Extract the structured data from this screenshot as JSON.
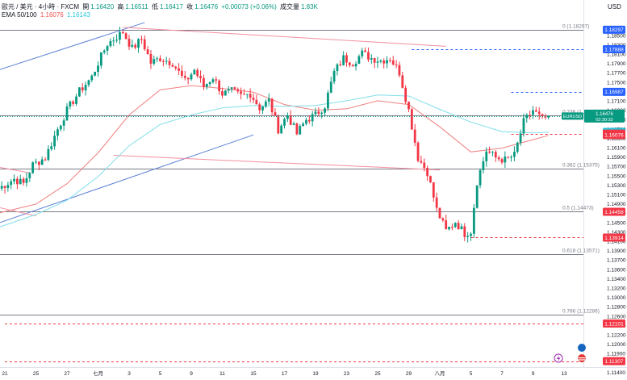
{
  "header": {
    "symbol": "歐元 / 美元 · 4小時 · FXCM",
    "open_label": "開",
    "open": "1.16420",
    "high_label": "高",
    "high": "1.16511",
    "low_label": "低",
    "low": "1.16417",
    "close_label": "收",
    "close": "1.16476",
    "change": "+0.00073 (+0.06%)",
    "volume_label": "成交量",
    "volume": "1.83K",
    "ema_label": "EMA 50/100",
    "ema_fast": "1.16076",
    "ema_slow": "1.16143"
  },
  "currency": "USD",
  "chart_data": {
    "type": "candlestick",
    "symbol": "EURUSD",
    "timeframe": "4H",
    "ylim": [
      1.1125,
      1.185
    ],
    "x_ticks": [
      {
        "i": 0,
        "label": "21"
      },
      {
        "i": 10,
        "label": "25"
      },
      {
        "i": 20,
        "label": "27"
      },
      {
        "i": 30,
        "label": "七月"
      },
      {
        "i": 40,
        "label": "3"
      },
      {
        "i": 50,
        "label": "5"
      },
      {
        "i": 60,
        "label": "9"
      },
      {
        "i": 70,
        "label": "11"
      },
      {
        "i": 80,
        "label": "15"
      },
      {
        "i": 90,
        "label": "17"
      },
      {
        "i": 100,
        "label": "19"
      },
      {
        "i": 110,
        "label": "23"
      },
      {
        "i": 120,
        "label": "25"
      },
      {
        "i": 130,
        "label": "29"
      },
      {
        "i": 140,
        "label": "八月"
      },
      {
        "i": 150,
        "label": "5"
      },
      {
        "i": 160,
        "label": "7"
      },
      {
        "i": 170,
        "label": "9"
      },
      {
        "i": 180,
        "label": "13"
      }
    ],
    "y_ticks": [
      "1.18500",
      "1.18300",
      "1.18100",
      "1.17900",
      "1.17700",
      "1.17500",
      "1.17300",
      "1.17100",
      "1.16900",
      "1.16700",
      "1.16500",
      "1.16300",
      "1.16100",
      "1.15900",
      "1.15700",
      "1.15500",
      "1.15300",
      "1.15100",
      "1.14900",
      "1.14700",
      "1.14500",
      "1.14300",
      "1.14100",
      "1.13900",
      "1.13700",
      "1.13600",
      "1.13400",
      "1.13200",
      "1.13000",
      "1.12800",
      "1.12600",
      "1.12400",
      "1.12200",
      "1.12000",
      "1.11900",
      "1.11600",
      "1.11400"
    ],
    "price_tags": [
      {
        "value": 1.18297,
        "text": "1.18297",
        "color": "#2962ff"
      },
      {
        "value": 1.17888,
        "text": "1.17888",
        "color": "#2962ff"
      },
      {
        "value": 1.16987,
        "text": "1.16987",
        "color": "#2962ff"
      },
      {
        "value": 1.16476,
        "text": "1.16476",
        "color": "#089981",
        "label": "EURUSD",
        "countdown": "02:30:32"
      },
      {
        "value": 1.16143,
        "text": "1.16143",
        "color": "#26c6da"
      },
      {
        "value": 1.16107,
        "text": "1.16107",
        "color": "#f23645"
      },
      {
        "value": 1.16076,
        "text": "1.16076",
        "color": "#f23645"
      },
      {
        "value": 1.14458,
        "text": "1.14458",
        "color": "#f23645"
      },
      {
        "value": 1.13914,
        "text": "1.13914",
        "color": "#f23645"
      },
      {
        "value": 1.12101,
        "text": "1.12101",
        "color": "#f23645"
      },
      {
        "value": 1.11307,
        "text": "1.11307",
        "color": "#f23645"
      }
    ],
    "fibonacci": [
      {
        "value": 1.18297,
        "label": "0 (1.18297)"
      },
      {
        "value": 1.16492,
        "label": "0.236 (1.16492)"
      },
      {
        "value": 1.15375,
        "label": "0.382 (1.15375)"
      },
      {
        "value": 1.14473,
        "label": "0.5 (1.14473)"
      },
      {
        "value": 1.13571,
        "label": "0.618 (1.13571)"
      },
      {
        "value": 1.12286,
        "label": "0.786 (1.12286)"
      }
    ],
    "dashed_levels": [
      {
        "value": 1.17888,
        "color": "#2962ff",
        "from_i": 131
      },
      {
        "value": 1.16987,
        "color": "#2962ff",
        "from_i": 163
      },
      {
        "value": 1.16107,
        "color": "#f23645",
        "from_i": 163
      },
      {
        "value": 1.13914,
        "color": "#f23645",
        "from_i": 150
      },
      {
        "value": 1.12101,
        "color": "#f23645",
        "from_i": 0
      },
      {
        "value": 1.11307,
        "color": "#f23645",
        "from_i": 0
      }
    ],
    "trendlines": [
      {
        "color": "#5b7fd6",
        "p1": [
          -2,
          1.1745
        ],
        "p2": [
          45,
          1.1845
        ]
      },
      {
        "color": "#5b7fd6",
        "p1": [
          -2,
          1.1422
        ],
        "p2": [
          80,
          1.1608
        ]
      },
      {
        "color": "#f48fa0",
        "p1": [
          38,
          1.1835
        ],
        "p2": [
          142,
          1.1795
        ]
      },
      {
        "color": "#f48fa0",
        "p1": [
          35,
          1.1565
        ],
        "p2": [
          140,
          1.1534
        ]
      },
      {
        "color": "#f48fa0",
        "p1": [
          -2,
          1.154
        ],
        "p2": [
          8,
          1.1528
        ]
      },
      {
        "color": "#f48fa0",
        "p1": [
          -2,
          1.1455
        ],
        "p2": [
          10,
          1.1437
        ]
      }
    ],
    "ema_series": [
      {
        "name": "EMA 50",
        "color": "#f08080",
        "points": [
          [
            -2,
            1.1443
          ],
          [
            10,
            1.1462
          ],
          [
            20,
            1.1505
          ],
          [
            30,
            1.157
          ],
          [
            40,
            1.165
          ],
          [
            50,
            1.1703
          ],
          [
            60,
            1.1712
          ],
          [
            70,
            1.1706
          ],
          [
            80,
            1.1698
          ],
          [
            90,
            1.1672
          ],
          [
            100,
            1.166
          ],
          [
            110,
            1.1663
          ],
          [
            120,
            1.168
          ],
          [
            130,
            1.1672
          ],
          [
            140,
            1.1625
          ],
          [
            150,
            1.1572
          ],
          [
            160,
            1.158
          ],
          [
            170,
            1.1598
          ],
          [
            175,
            1.1607
          ]
        ]
      },
      {
        "name": "EMA 100",
        "color": "#80deea",
        "points": [
          [
            -2,
            1.1413
          ],
          [
            10,
            1.144
          ],
          [
            20,
            1.147
          ],
          [
            30,
            1.152
          ],
          [
            40,
            1.1585
          ],
          [
            50,
            1.163
          ],
          [
            60,
            1.165
          ],
          [
            70,
            1.1665
          ],
          [
            80,
            1.167
          ],
          [
            90,
            1.1668
          ],
          [
            100,
            1.167
          ],
          [
            110,
            1.168
          ],
          [
            120,
            1.1692
          ],
          [
            130,
            1.169
          ],
          [
            140,
            1.1662
          ],
          [
            150,
            1.1635
          ],
          [
            160,
            1.1615
          ],
          [
            170,
            1.1612
          ],
          [
            175,
            1.1614
          ]
        ]
      }
    ],
    "anchors": [
      [
        -2,
        1.1495
      ],
      [
        3,
        1.1515
      ],
      [
        6,
        1.1505
      ],
      [
        9,
        1.1545
      ],
      [
        13,
        1.156
      ],
      [
        17,
        1.162
      ],
      [
        20,
        1.166
      ],
      [
        24,
        1.17
      ],
      [
        28,
        1.173
      ],
      [
        30,
        1.176
      ],
      [
        33,
        1.18
      ],
      [
        36,
        1.1815
      ],
      [
        38,
        1.1825
      ],
      [
        41,
        1.179
      ],
      [
        44,
        1.181
      ],
      [
        47,
        1.176
      ],
      [
        50,
        1.177
      ],
      [
        54,
        1.176
      ],
      [
        58,
        1.172
      ],
      [
        61,
        1.1745
      ],
      [
        64,
        1.171
      ],
      [
        67,
        1.173
      ],
      [
        70,
        1.1695
      ],
      [
        73,
        1.17
      ],
      [
        76,
        1.169
      ],
      [
        79,
        1.1695
      ],
      [
        82,
        1.1665
      ],
      [
        85,
        1.168
      ],
      [
        88,
        1.162
      ],
      [
        91,
        1.165
      ],
      [
        94,
        1.161
      ],
      [
        97,
        1.164
      ],
      [
        100,
        1.165
      ],
      [
        103,
        1.167
      ],
      [
        106,
        1.174
      ],
      [
        109,
        1.177
      ],
      [
        112,
        1.176
      ],
      [
        115,
        1.178
      ],
      [
        118,
        1.177
      ],
      [
        121,
        1.1765
      ],
      [
        124,
        1.177
      ],
      [
        127,
        1.174
      ],
      [
        130,
        1.166
      ],
      [
        133,
        1.156
      ],
      [
        136,
        1.153
      ],
      [
        139,
        1.145
      ],
      [
        142,
        1.1405
      ],
      [
        145,
        1.1425
      ],
      [
        148,
        1.14
      ],
      [
        150,
        1.1405
      ],
      [
        152,
        1.151
      ],
      [
        155,
        1.1575
      ],
      [
        158,
        1.156
      ],
      [
        161,
        1.1555
      ],
      [
        164,
        1.1565
      ],
      [
        167,
        1.1635
      ],
      [
        170,
        1.166
      ],
      [
        173,
        1.164
      ],
      [
        175,
        1.1648
      ]
    ],
    "last_close": 1.16476
  }
}
